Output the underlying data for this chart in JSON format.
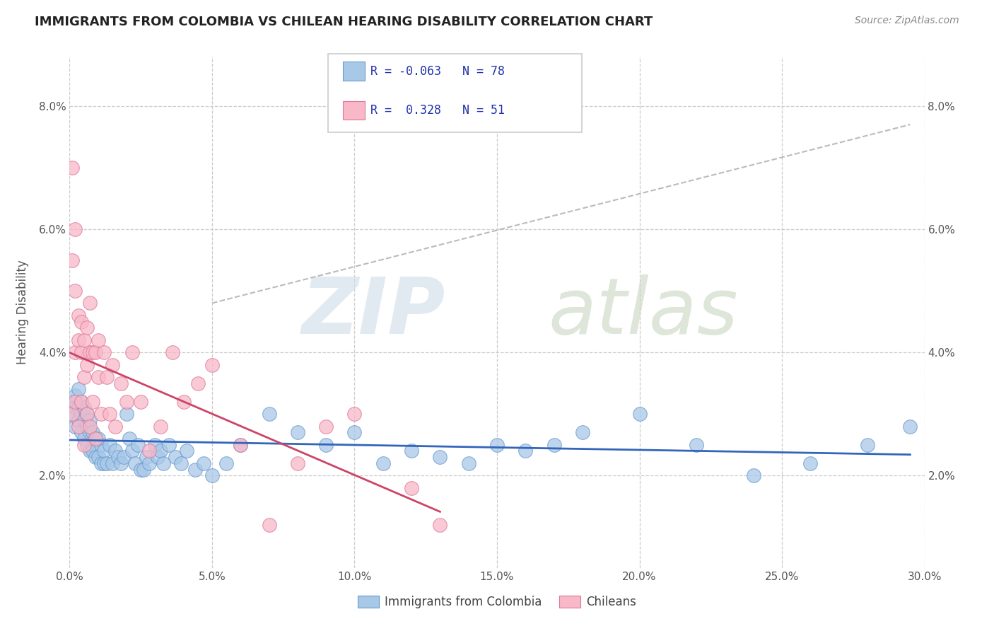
{
  "title": "IMMIGRANTS FROM COLOMBIA VS CHILEAN HEARING DISABILITY CORRELATION CHART",
  "source": "Source: ZipAtlas.com",
  "ylabel": "Hearing Disability",
  "xlim": [
    0.0,
    0.3
  ],
  "ylim": [
    0.005,
    0.088
  ],
  "xticks": [
    0.0,
    0.05,
    0.1,
    0.15,
    0.2,
    0.25,
    0.3
  ],
  "yticks": [
    0.02,
    0.04,
    0.06,
    0.08
  ],
  "colombia_color": "#a8c8e8",
  "colombia_edge": "#6699cc",
  "chile_color": "#f8b8c8",
  "chile_edge": "#dd7799",
  "colombia_line_color": "#3366bb",
  "chile_line_color": "#cc4466",
  "gray_dash_color": "#bbbbbb",
  "legend_box_color": "#dddddd",
  "legend_text_color": "#2233aa",
  "watermark_zip_color": "#d0dce8",
  "watermark_atlas_color": "#c8d4c0"
}
